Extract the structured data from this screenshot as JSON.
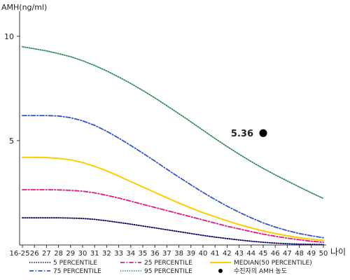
{
  "chart_data": {
    "type": "line",
    "ylabel": "AMH(ng/ml)",
    "xlabel": "나이",
    "x_tick_labels": [
      "16-25",
      "26",
      "27",
      "28",
      "29",
      "30",
      "31",
      "32",
      "33",
      "34",
      "35",
      "36",
      "37",
      "38",
      "39",
      "40",
      "41",
      "42",
      "43",
      "44",
      "45",
      "46",
      "47",
      "48",
      "49",
      "50"
    ],
    "y_ticks": [
      5,
      10
    ],
    "ylim": [
      0,
      11
    ],
    "grid": false,
    "legend_position": "bottom",
    "series": [
      {
        "name": "5 PERCENTILE",
        "color": "#000066",
        "dash": "dotted",
        "values": [
          1.3,
          1.3,
          1.3,
          1.3,
          1.29,
          1.27,
          1.23,
          1.16,
          1.08,
          1.0,
          0.91,
          0.82,
          0.73,
          0.64,
          0.55,
          0.46,
          0.38,
          0.31,
          0.24,
          0.18,
          0.13,
          0.09,
          0.06,
          0.04,
          0.03,
          0.02
        ]
      },
      {
        "name": "25 PERCENTILE",
        "color": "#dd1a8a",
        "dash": "dashdot",
        "values": [
          2.65,
          2.65,
          2.65,
          2.64,
          2.62,
          2.58,
          2.5,
          2.38,
          2.25,
          2.1,
          1.95,
          1.8,
          1.65,
          1.5,
          1.35,
          1.2,
          1.05,
          0.9,
          0.77,
          0.64,
          0.52,
          0.42,
          0.33,
          0.25,
          0.18,
          0.13
        ]
      },
      {
        "name": "MEDIAN(50 PERCENTILE)",
        "color": "#ffcc00",
        "dash": "solid",
        "values": [
          4.2,
          4.2,
          4.19,
          4.15,
          4.08,
          3.95,
          3.77,
          3.55,
          3.3,
          3.04,
          2.78,
          2.52,
          2.26,
          2.01,
          1.77,
          1.55,
          1.35,
          1.16,
          0.98,
          0.82,
          0.67,
          0.55,
          0.44,
          0.35,
          0.28,
          0.22
        ]
      },
      {
        "name": "75 PERCENTILE",
        "color": "#3355cc",
        "dash": "dashdot",
        "values": [
          6.2,
          6.2,
          6.2,
          6.18,
          6.1,
          5.95,
          5.73,
          5.45,
          5.12,
          4.77,
          4.4,
          4.02,
          3.63,
          3.25,
          2.88,
          2.52,
          2.18,
          1.86,
          1.57,
          1.3,
          1.06,
          0.86,
          0.69,
          0.55,
          0.44,
          0.35
        ]
      },
      {
        "name": "95 PERCENTILE",
        "color": "#2e8b57",
        "dash": "dotted",
        "values": [
          9.5,
          9.4,
          9.3,
          9.17,
          9.02,
          8.83,
          8.6,
          8.34,
          8.05,
          7.74,
          7.4,
          7.05,
          6.67,
          6.29,
          5.9,
          5.5,
          5.1,
          4.72,
          4.35,
          4.0,
          3.67,
          3.36,
          3.07,
          2.78,
          2.5,
          2.23
        ]
      }
    ],
    "point": {
      "name": "수진자의 AMH 농도",
      "x_label": "45",
      "value": 5.36,
      "label": "5.36",
      "color": "#000000"
    }
  }
}
